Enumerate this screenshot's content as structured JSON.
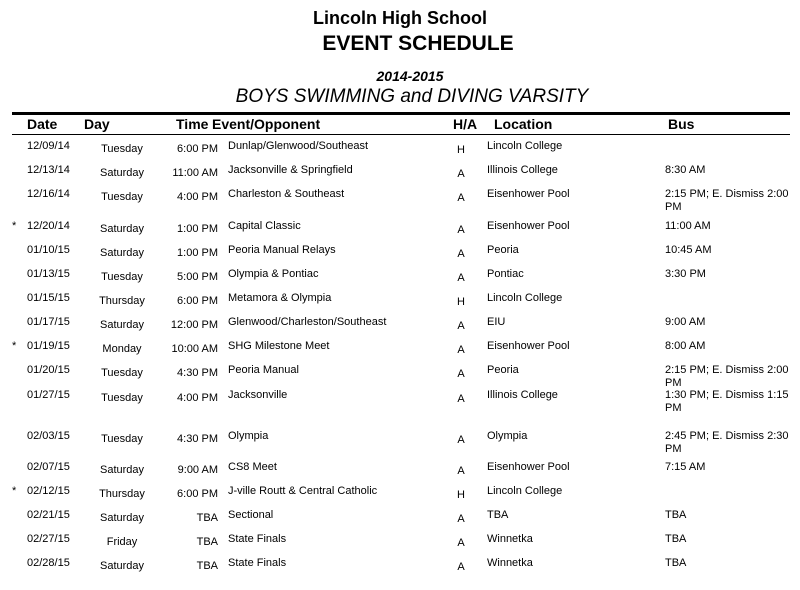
{
  "header": {
    "school": "Lincoln High School",
    "title": "EVENT SCHEDULE",
    "season": "2014-2015",
    "team": "BOYS SWIMMING and DIVING VARSITY"
  },
  "columns": [
    "Date",
    "Day",
    "Time",
    "Event/Opponent",
    "H/A",
    "Location",
    "Bus"
  ],
  "rows": [
    {
      "mark": "",
      "date": "12/09/14",
      "day": "Tuesday",
      "time": "6:00 PM",
      "event": "Dunlap/Glenwood/Southeast",
      "ha": "H",
      "location": "Lincoln College",
      "bus": ""
    },
    {
      "mark": "",
      "date": "12/13/14",
      "day": "Saturday",
      "time": "11:00 AM",
      "event": "Jacksonville & Springfield",
      "ha": "A",
      "location": "Illinois College",
      "bus": "8:30 AM"
    },
    {
      "mark": "",
      "date": "12/16/14",
      "day": "Tuesday",
      "time": "4:00 PM",
      "event": "Charleston & Southeast",
      "ha": "A",
      "location": "Eisenhower Pool",
      "bus": "2:15 PM; E. Dismiss 2:00 PM"
    },
    {
      "mark": "*",
      "date": "12/20/14",
      "day": "Saturday",
      "time": "1:00 PM",
      "event": "Capital Classic",
      "ha": "A",
      "location": "Eisenhower Pool",
      "bus": "11:00 AM"
    },
    {
      "mark": "",
      "date": "01/10/15",
      "day": "Saturday",
      "time": "1:00 PM",
      "event": "Peoria Manual Relays",
      "ha": "A",
      "location": "Peoria",
      "bus": "10:45 AM"
    },
    {
      "mark": "",
      "date": "01/13/15",
      "day": "Tuesday",
      "time": "5:00 PM",
      "event": "Olympia & Pontiac",
      "ha": "A",
      "location": "Pontiac",
      "bus": "3:30 PM"
    },
    {
      "mark": "",
      "date": "01/15/15",
      "day": "Thursday",
      "time": "6:00 PM",
      "event": "Metamora & Olympia",
      "ha": "H",
      "location": "Lincoln College",
      "bus": ""
    },
    {
      "mark": "",
      "date": "01/17/15",
      "day": "Saturday",
      "time": "12:00 PM",
      "event": "Glenwood/Charleston/Southeast",
      "ha": "A",
      "location": "EIU",
      "bus": "9:00 AM"
    },
    {
      "mark": "*",
      "date": "01/19/15",
      "day": "Monday",
      "time": "10:00 AM",
      "event": "SHG Milestone Meet",
      "ha": "A",
      "location": "Eisenhower Pool",
      "bus": "8:00 AM"
    },
    {
      "mark": "",
      "date": "01/20/15",
      "day": "Tuesday",
      "time": "4:30 PM",
      "event": "Peoria Manual",
      "ha": "A",
      "location": "Peoria",
      "bus": "2:15 PM; E. Dismiss 2:00 PM"
    },
    {
      "mark": "",
      "date": "01/27/15",
      "day": "Tuesday",
      "time": "4:00 PM",
      "event": "Jacksonville",
      "ha": "A",
      "location": "Illinois College",
      "bus": "1:30 PM; E. Dismiss 1:15 PM"
    },
    {
      "mark": "",
      "date": "02/03/15",
      "day": "Tuesday",
      "time": "4:30 PM",
      "event": "Olympia",
      "ha": "A",
      "location": "Olympia",
      "bus": "2:45 PM; E. Dismiss 2:30 PM"
    },
    {
      "mark": "",
      "date": "02/07/15",
      "day": "Saturday",
      "time": "9:00 AM",
      "event": "CS8 Meet",
      "ha": "A",
      "location": "Eisenhower Pool",
      "bus": "7:15 AM"
    },
    {
      "mark": "*",
      "date": "02/12/15",
      "day": "Thursday",
      "time": "6:00 PM",
      "event": "J-ville Routt & Central Catholic",
      "ha": "H",
      "location": "Lincoln College",
      "bus": ""
    },
    {
      "mark": "",
      "date": "02/21/15",
      "day": "Saturday",
      "time": "TBA",
      "event": "Sectional",
      "ha": "A",
      "location": "TBA",
      "bus": "TBA"
    },
    {
      "mark": "",
      "date": "02/27/15",
      "day": "Friday",
      "time": "TBA",
      "event": "State Finals",
      "ha": "A",
      "location": "Winnetka",
      "bus": "TBA"
    },
    {
      "mark": "",
      "date": "02/28/15",
      "day": "Saturday",
      "time": "TBA",
      "event": "State Finals",
      "ha": "A",
      "location": "Winnetka",
      "bus": "TBA"
    }
  ]
}
